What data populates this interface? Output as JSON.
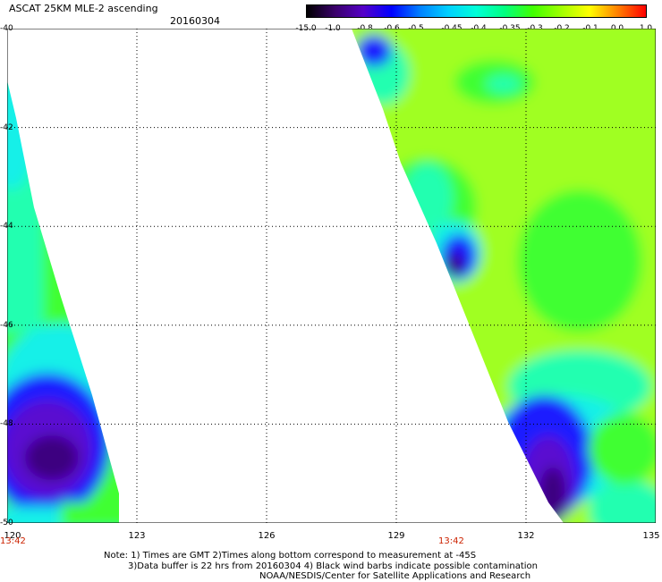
{
  "header": {
    "title": "ASCAT 25KM MLE-2 ascending",
    "date": "20160304"
  },
  "colorbar": {
    "labels": [
      "-15.0",
      "-1.0",
      "-0.8",
      "-0.6",
      "-0.5",
      "-0.45",
      "-0.4",
      "-0.35",
      "-0.3",
      "-0.2",
      "-0.1",
      "0.0",
      "1.0"
    ],
    "colors": [
      "#000000",
      "#3a006a",
      "#5500c8",
      "#0000ff",
      "#0080ff",
      "#00d0ff",
      "#00ffd8",
      "#00ff80",
      "#40ff00",
      "#a0ff00",
      "#ffff00",
      "#ff8000",
      "#ff0000"
    ]
  },
  "map": {
    "lat_labels": [
      "-40",
      "-42",
      "-44",
      "-46",
      "-48",
      "-50"
    ],
    "lon_labels": [
      "120",
      "123",
      "126",
      "129",
      "132",
      "135"
    ],
    "lat_range": [
      -50,
      -40
    ],
    "lon_range": [
      120,
      135
    ],
    "time_labels": [
      "13:42",
      "13:42"
    ],
    "palette": {
      "deep": "#3c0080",
      "purple": "#5a10d0",
      "blue": "#1a1aff",
      "lightblue": "#30a8ff",
      "cyan": "#18f0e8",
      "aqua": "#20ffb0",
      "green": "#40ff30",
      "yellowgreen": "#a0ff20",
      "grid": "#000000"
    }
  },
  "notes": {
    "line1": "Note: 1) Times are GMT 2)Times along bottom correspond to measurement at -45S",
    "line2": "3)Data buffer is 22 hrs from 20160304 4) Black wind barbs indicate possible contamination",
    "line3": "NOAA/NESDIS/Center for Satellite Applications and Research"
  }
}
